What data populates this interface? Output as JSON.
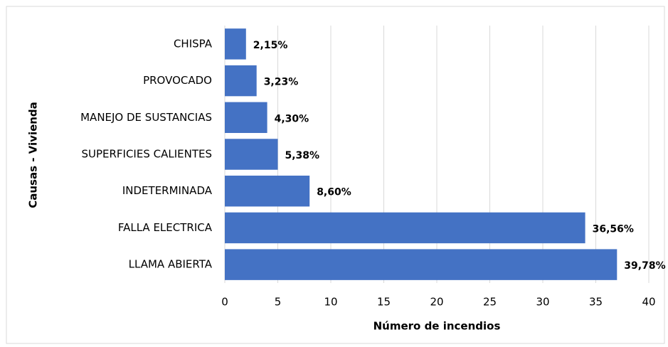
{
  "chart_data": {
    "type": "bar",
    "orientation": "horizontal",
    "x_label": "Número de incendios",
    "y_label": "Causas - Vivienda",
    "categories": [
      "CHISPA",
      "PROVOCADO",
      "MANEJO DE SUSTANCIAS",
      "SUPERFICIES CALIENTES",
      "INDETERMINADA",
      "FALLA ELECTRICA",
      "LLAMA ABIERTA"
    ],
    "values": [
      2,
      3,
      4,
      5,
      8,
      34,
      37
    ],
    "shares": [
      {
        "value": 2.15,
        "label": "2,15%"
      },
      {
        "value": 3.23,
        "label": "3,23%"
      },
      {
        "value": 4.3,
        "label": "4,30%"
      },
      {
        "value": 5.38,
        "label": "5,38%"
      },
      {
        "value": 8.6,
        "label": "8,60%"
      },
      {
        "value": 36.56,
        "label": "36,56%"
      },
      {
        "value": 39.78,
        "label": "39,78%"
      }
    ],
    "color": "#4472c4",
    "xlim": [
      0,
      40
    ],
    "xticks": [
      0,
      5,
      10,
      15,
      20,
      25,
      30,
      35,
      40
    ],
    "grid": true
  }
}
